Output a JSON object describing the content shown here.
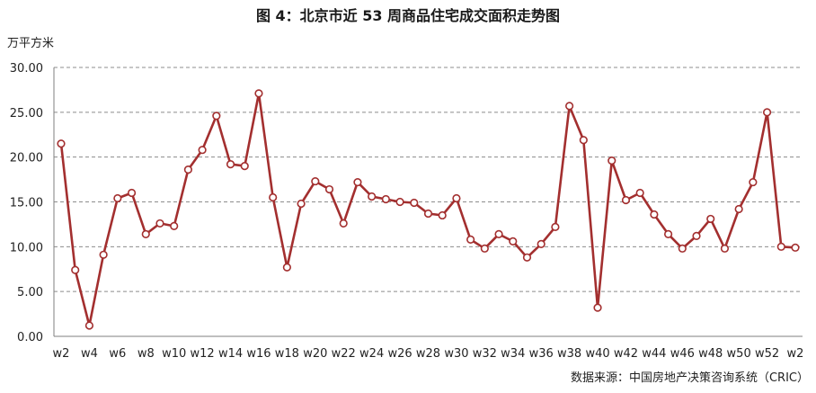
{
  "title": "图 4：北京市近 53 周商品住宅成交面积走势图",
  "unit_label": "万平方米",
  "source": "数据来源：中国房地产决策咨询系统（CRIC）",
  "colors": {
    "series": "#a32f2f",
    "grid": "#8c8c8c",
    "axis": "#7f7f7f"
  },
  "chart_data": {
    "type": "line",
    "title": "图 4：北京市近 53 周商品住宅成交面积走势图",
    "ylabel": "万平方米",
    "xlabel": "",
    "ylim": [
      0,
      30
    ],
    "yticks": [
      "0.00",
      "5.00",
      "10.00",
      "15.00",
      "20.00",
      "25.00",
      "30.00"
    ],
    "grid": true,
    "x_tick_labels": [
      "w2",
      "w4",
      "w6",
      "w8",
      "w10",
      "w12",
      "w14",
      "w16",
      "w18",
      "w20",
      "w22",
      "w24",
      "w26",
      "w28",
      "w30",
      "w32",
      "w34",
      "w36",
      "w38",
      "w40",
      "w42",
      "w44",
      "w46",
      "w48",
      "w50",
      "w52",
      "w2"
    ],
    "x": [
      "w2",
      "w3",
      "w4",
      "w5",
      "w6",
      "w7",
      "w8",
      "w9",
      "w10",
      "w11",
      "w12",
      "w13",
      "w14",
      "w15",
      "w16",
      "w17",
      "w18",
      "w19",
      "w20",
      "w21",
      "w22",
      "w23",
      "w24",
      "w25",
      "w26",
      "w27",
      "w28",
      "w29",
      "w30",
      "w31",
      "w32",
      "w33",
      "w34",
      "w35",
      "w36",
      "w37",
      "w38",
      "w39",
      "w40",
      "w41",
      "w42",
      "w43",
      "w44",
      "w45",
      "w46",
      "w47",
      "w48",
      "w49",
      "w50",
      "w51",
      "w52",
      "w1",
      "w2"
    ],
    "series": [
      {
        "values": [
          21.5,
          7.4,
          1.2,
          9.1,
          15.4,
          16.0,
          11.4,
          12.6,
          12.3,
          18.6,
          20.8,
          24.6,
          19.2,
          19.0,
          27.1,
          15.5,
          7.7,
          14.8,
          17.3,
          16.4,
          12.6,
          17.2,
          15.6,
          15.3,
          15.0,
          14.9,
          13.7,
          13.5,
          15.4,
          10.8,
          9.8,
          11.4,
          10.6,
          8.8,
          10.3,
          12.2,
          25.7,
          21.9,
          3.2,
          19.6,
          15.2,
          16.0,
          13.6,
          11.4,
          9.8,
          11.2,
          13.1,
          9.8,
          14.2,
          17.2,
          25.0,
          10.0,
          9.9
        ]
      }
    ]
  }
}
